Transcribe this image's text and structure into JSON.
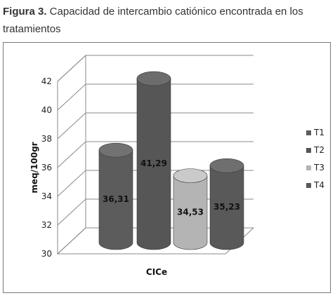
{
  "caption": {
    "lead": "Figura 3.",
    "text": " Capacidad de intercambio catiónico encontrada en los tratamientos"
  },
  "chart_data": {
    "type": "bar",
    "title": "",
    "xlabel": "CICe",
    "ylabel": "meq/100gr",
    "categories": [
      "CICe"
    ],
    "series": [
      {
        "name": "T1",
        "values": [
          36.31
        ],
        "label": "36,31",
        "color": "#5c5c5c"
      },
      {
        "name": "T2",
        "values": [
          41.29
        ],
        "label": "41,29",
        "color": "#565656"
      },
      {
        "name": "T3",
        "values": [
          34.53
        ],
        "label": "34,53",
        "color": "#b4b4b4"
      },
      {
        "name": "T4",
        "values": [
          35.23
        ],
        "label": "35,23",
        "color": "#595959"
      }
    ],
    "yticks": [
      "30",
      "32",
      "34",
      "36",
      "38",
      "40",
      "42"
    ],
    "ylim": [
      30,
      42
    ],
    "grid": true,
    "legend": "right"
  }
}
